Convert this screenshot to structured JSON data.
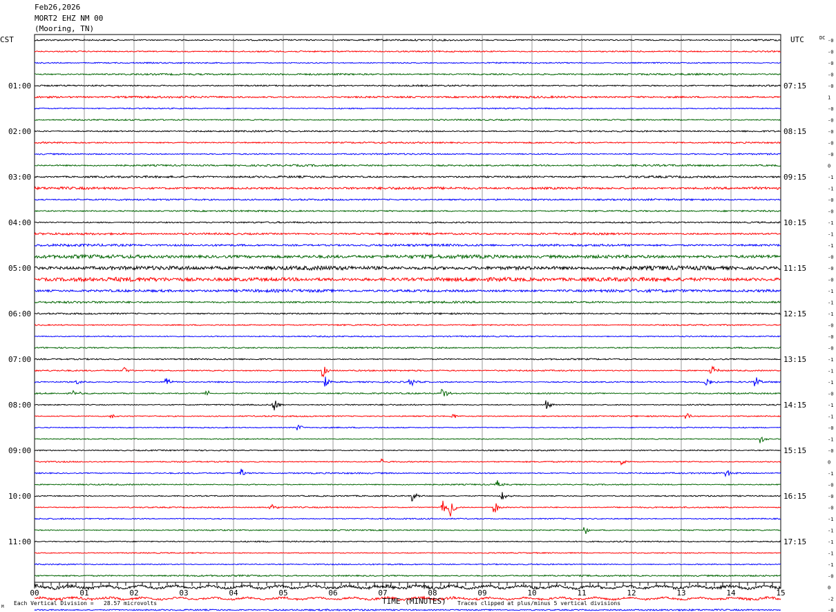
{
  "header": {
    "date": "Feb26,2026",
    "station": "MORT2 EHZ NM 00",
    "location": "(Mooring, TN)"
  },
  "labels": {
    "left_zone": "CST",
    "right_zone": "UTC",
    "dc_header": "DC"
  },
  "footer": {
    "vertical_division": "Each Vertical Division =   28.57 microvolts",
    "clip_note": "Traces clipped at plus/minus 5 vertical divisions",
    "corner_mark": "M"
  },
  "chart_data": {
    "type": "line",
    "title": "",
    "xlabel": "TIME (MINUTES)",
    "ylabel": "",
    "xlim": [
      0,
      15
    ],
    "x_ticks": [
      "00",
      "01",
      "02",
      "03",
      "04",
      "05",
      "06",
      "07",
      "08",
      "09",
      "10",
      "11",
      "12",
      "13",
      "14",
      "15"
    ],
    "grid": true,
    "trace_colors": [
      "#000000",
      "#ff0000",
      "#0000ff",
      "#006400"
    ],
    "cst_labels": [
      "01:00",
      "02:00",
      "03:00",
      "04:00",
      "05:00",
      "06:00",
      "07:00",
      "08:00",
      "09:00",
      "10:00",
      "11:00"
    ],
    "utc_labels": [
      "07:15",
      "08:15",
      "09:15",
      "10:15",
      "11:15",
      "12:15",
      "13:15",
      "14:15",
      "15:15",
      "16:15",
      "17:15"
    ],
    "dc_offsets": [
      "-0",
      "-0",
      "-0",
      "-0",
      "-0",
      "1",
      "-0",
      "-0",
      "-0",
      "-0",
      "-0",
      "0",
      "-1",
      "-1",
      "-0",
      "-0",
      "-1",
      "-1",
      "-1",
      "-0",
      "-0",
      "-0",
      "-1",
      "-1",
      "-1",
      "-0",
      "-0",
      "-0",
      "-1",
      "-1",
      "-1",
      "-0",
      "-1",
      "-1",
      "-0",
      "-1",
      "-0",
      "0",
      "-1",
      "-0",
      "-0",
      "-0",
      "-1",
      "-1",
      "-1",
      "-1",
      "-1",
      "-0",
      "0",
      "-2",
      "-0",
      "-0"
    ],
    "amplitude": [
      1.0,
      0.9,
      0.8,
      1.1,
      1.0,
      1.3,
      0.8,
      0.9,
      1.0,
      1.0,
      0.9,
      1.2,
      1.3,
      1.6,
      1.1,
      1.0,
      1.0,
      1.3,
      1.5,
      2.3,
      2.6,
      2.6,
      1.8,
      1.3,
      1.0,
      0.9,
      0.8,
      0.9,
      0.9,
      0.9,
      0.9,
      0.9,
      0.8,
      0.8,
      0.7,
      0.7,
      0.8,
      0.8,
      0.9,
      0.8,
      0.8,
      0.8,
      0.8,
      0.8,
      0.8,
      0.7,
      0.8,
      1.0,
      2.0,
      1.5,
      1.0,
      0.9
    ],
    "events": [
      {
        "trace": 29,
        "minute": 1.8,
        "amp": 8
      },
      {
        "trace": 29,
        "minute": 5.8,
        "amp": 10
      },
      {
        "trace": 29,
        "minute": 13.6,
        "amp": 11
      },
      {
        "trace": 30,
        "minute": 0.85,
        "amp": 7
      },
      {
        "trace": 30,
        "minute": 2.65,
        "amp": 9
      },
      {
        "trace": 30,
        "minute": 5.85,
        "amp": 8
      },
      {
        "trace": 30,
        "minute": 7.55,
        "amp": 8
      },
      {
        "trace": 30,
        "minute": 13.5,
        "amp": 12
      },
      {
        "trace": 30,
        "minute": 14.5,
        "amp": 7
      },
      {
        "trace": 31,
        "minute": 0.8,
        "amp": 6
      },
      {
        "trace": 31,
        "minute": 3.45,
        "amp": 7
      },
      {
        "trace": 31,
        "minute": 8.2,
        "amp": 9
      },
      {
        "trace": 32,
        "minute": 4.8,
        "amp": 12
      },
      {
        "trace": 32,
        "minute": 10.3,
        "amp": 7
      },
      {
        "trace": 33,
        "minute": 1.55,
        "amp": 6
      },
      {
        "trace": 33,
        "minute": 8.4,
        "amp": 5
      },
      {
        "trace": 33,
        "minute": 13.1,
        "amp": 7
      },
      {
        "trace": 34,
        "minute": 5.3,
        "amp": 6
      },
      {
        "trace": 35,
        "minute": 14.6,
        "amp": 7
      },
      {
        "trace": 37,
        "minute": 7.0,
        "amp": 5
      },
      {
        "trace": 37,
        "minute": 11.8,
        "amp": 6
      },
      {
        "trace": 38,
        "minute": 4.15,
        "amp": 7
      },
      {
        "trace": 38,
        "minute": 13.9,
        "amp": 7
      },
      {
        "trace": 39,
        "minute": 9.3,
        "amp": 6
      },
      {
        "trace": 40,
        "minute": 7.6,
        "amp": 8
      },
      {
        "trace": 40,
        "minute": 9.4,
        "amp": 8
      },
      {
        "trace": 41,
        "minute": 4.75,
        "amp": 9
      },
      {
        "trace": 41,
        "minute": 8.2,
        "amp": 12
      },
      {
        "trace": 41,
        "minute": 8.35,
        "amp": 18
      },
      {
        "trace": 41,
        "minute": 9.25,
        "amp": 10
      },
      {
        "trace": 43,
        "minute": 11.05,
        "amp": 8
      }
    ]
  }
}
